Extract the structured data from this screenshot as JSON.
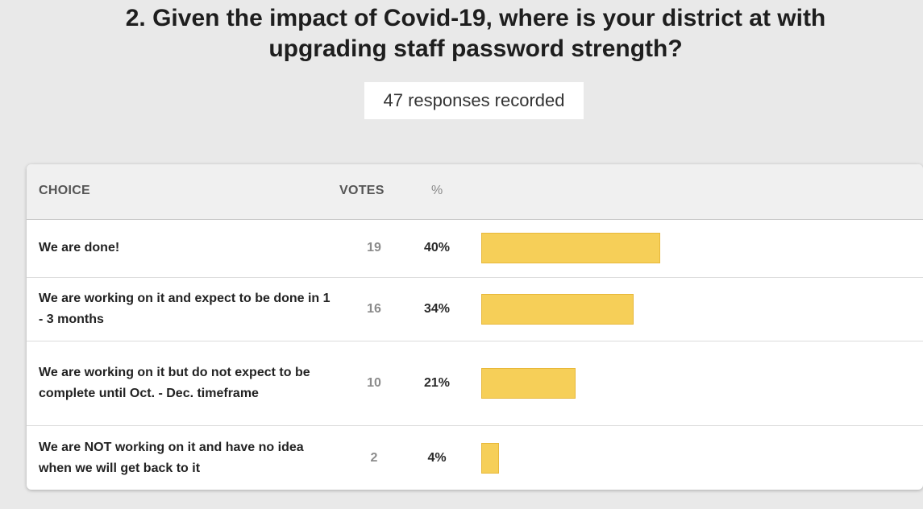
{
  "chart_data": {
    "type": "table",
    "title": "2. Given the impact of Covid-19, where is your district at with upgrading staff password strength?",
    "title_lines": [
      "2. Given the impact of Covid-19, where is your district at with",
      "upgrading staff password strength?"
    ],
    "subtitle": "47 responses recorded",
    "columns": [
      "CHOICE",
      "VOTES",
      "%"
    ],
    "rows": [
      {
        "choice": "We are done!",
        "votes": "19",
        "percent": "40%",
        "value": 40
      },
      {
        "choice": "We are working on it and expect to be done in 1 - 3 months",
        "votes": "16",
        "percent": "34%",
        "value": 34
      },
      {
        "choice": "We are working on it but do not expect to be complete until Oct. - Dec. timeframe",
        "votes": "10",
        "percent": "21%",
        "value": 21
      },
      {
        "choice": "We are NOT working on it and have no idea when we will get back to it",
        "votes": "2",
        "percent": "4%",
        "value": 4
      }
    ]
  },
  "colors": {
    "bar_fill": "#f6cf58",
    "bar_border": "#e8b83a",
    "background": "#e9e9e9"
  }
}
